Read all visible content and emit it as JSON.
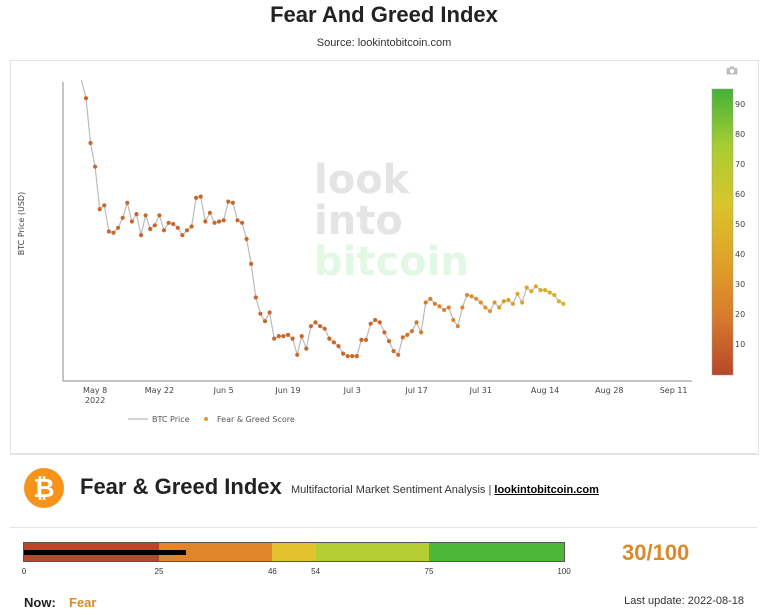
{
  "page": {
    "title": "Fear And Greed Index",
    "source": "Source: lookintobitcoin.com"
  },
  "chart_data": {
    "type": "line",
    "ylabel": "BTC Price (USD)",
    "xlabel": "",
    "x_axis_type": "date",
    "x_range": [
      "2022-05-01",
      "2022-09-15"
    ],
    "x_ticks": [
      {
        "date": "2022-05-08",
        "label": "May 8",
        "sublabel": "2022"
      },
      {
        "date": "2022-05-22",
        "label": "May 22"
      },
      {
        "date": "2022-06-05",
        "label": "Jun 5"
      },
      {
        "date": "2022-06-19",
        "label": "Jun 19"
      },
      {
        "date": "2022-07-03",
        "label": "Jul 3"
      },
      {
        "date": "2022-07-17",
        "label": "Jul 17"
      },
      {
        "date": "2022-07-31",
        "label": "Jul 31"
      },
      {
        "date": "2022-08-14",
        "label": "Aug 14"
      },
      {
        "date": "2022-08-28",
        "label": "Aug 28"
      },
      {
        "date": "2022-09-11",
        "label": "Sep 11"
      }
    ],
    "price_range": [
      17000,
      41000
    ],
    "legend_position": "bottom-left",
    "watermark": [
      "look",
      "into",
      "bitcoin"
    ],
    "series": [
      {
        "name": "BTC Price",
        "color": "#bbbbbb",
        "x": [
          "2022-05-06",
          "2022-05-07",
          "2022-05-08",
          "2022-05-09",
          "2022-05-10",
          "2022-05-11",
          "2022-05-12",
          "2022-05-13",
          "2022-05-14",
          "2022-05-15",
          "2022-05-16",
          "2022-05-17",
          "2022-05-18",
          "2022-05-19",
          "2022-05-20",
          "2022-05-21",
          "2022-05-22",
          "2022-05-23",
          "2022-05-24",
          "2022-05-25",
          "2022-05-26",
          "2022-05-27",
          "2022-05-28",
          "2022-05-29",
          "2022-05-30",
          "2022-05-31",
          "2022-06-01",
          "2022-06-02",
          "2022-06-03",
          "2022-06-04",
          "2022-06-05",
          "2022-06-06",
          "2022-06-07",
          "2022-06-08",
          "2022-06-09",
          "2022-06-10",
          "2022-06-11",
          "2022-06-12",
          "2022-06-13",
          "2022-06-14",
          "2022-06-15",
          "2022-06-16",
          "2022-06-17",
          "2022-06-18",
          "2022-06-19",
          "2022-06-20",
          "2022-06-21",
          "2022-06-22",
          "2022-06-23",
          "2022-06-24",
          "2022-06-25",
          "2022-06-26",
          "2022-06-27",
          "2022-06-28",
          "2022-06-29",
          "2022-06-30",
          "2022-07-01",
          "2022-07-02",
          "2022-07-03",
          "2022-07-04",
          "2022-07-05",
          "2022-07-06",
          "2022-07-07",
          "2022-07-08",
          "2022-07-09",
          "2022-07-10",
          "2022-07-11",
          "2022-07-12",
          "2022-07-13",
          "2022-07-14",
          "2022-07-15",
          "2022-07-16",
          "2022-07-17",
          "2022-07-18",
          "2022-07-19",
          "2022-07-20",
          "2022-07-21",
          "2022-07-22",
          "2022-07-23",
          "2022-07-24",
          "2022-07-25",
          "2022-07-26",
          "2022-07-27",
          "2022-07-28",
          "2022-07-29",
          "2022-07-30",
          "2022-07-31",
          "2022-08-01",
          "2022-08-02",
          "2022-08-03",
          "2022-08-04",
          "2022-08-05",
          "2022-08-06",
          "2022-08-07",
          "2022-08-08",
          "2022-08-09",
          "2022-08-10",
          "2022-08-11",
          "2022-08-12",
          "2022-08-13",
          "2022-08-14",
          "2022-08-15",
          "2022-08-16",
          "2022-08-17",
          "2022-08-18"
        ],
        "values": [
          39700,
          36100,
          34200,
          30800,
          31100,
          29000,
          28900,
          29300,
          30100,
          31300,
          29800,
          30400,
          28700,
          30300,
          29200,
          29500,
          30300,
          29100,
          29700,
          29600,
          29300,
          28700,
          29100,
          29400,
          31700,
          31800,
          29800,
          30500,
          29700,
          29800,
          29900,
          31400,
          31300,
          29900,
          29700,
          28400,
          26400,
          23700,
          22400,
          21800,
          22500,
          20400,
          20600,
          20600,
          20700,
          20400,
          19100,
          20600,
          19600,
          21400,
          21700,
          21400,
          21200,
          20400,
          20100,
          19800,
          19200,
          19000,
          19000,
          19000,
          20300,
          20300,
          21600,
          21900,
          21700,
          20900,
          20200,
          19400,
          19100,
          20500,
          20700,
          21000,
          21700,
          20900,
          23300,
          23600,
          23200,
          23000,
          22700,
          22900,
          21900,
          21400,
          22900,
          23900,
          23800,
          23600,
          23300,
          22900,
          22600,
          23300,
          22900,
          23400,
          23500,
          23200,
          24000,
          23300,
          24500,
          24200,
          24600,
          24300,
          24300,
          24100,
          23900,
          23400,
          23200
        ]
      },
      {
        "name": "Fear & Greed Score",
        "color": "#e0952d",
        "marker": "circle"
      }
    ],
    "colorbar": {
      "range": [
        0,
        100
      ],
      "ticks": [
        10,
        20,
        30,
        40,
        50,
        60,
        70,
        80,
        90
      ],
      "stops": [
        "#b8472a",
        "#d77a2c",
        "#e0a227",
        "#d8c52c",
        "#a7cd31",
        "#44b23a"
      ]
    }
  },
  "header": {
    "title": "Fear & Greed Index",
    "subtitle": "Multifactorial Market Sentiment Analysis |",
    "link": "lookintobitcoin.com"
  },
  "gauge": {
    "value": 30,
    "score_text": "30/100",
    "segments": [
      {
        "from": 0,
        "to": 25,
        "color": "#b8472a"
      },
      {
        "from": 25,
        "to": 46,
        "color": "#e0852a"
      },
      {
        "from": 46,
        "to": 54,
        "color": "#e1c22c"
      },
      {
        "from": 54,
        "to": 75,
        "color": "#b4cd30"
      },
      {
        "from": 75,
        "to": 100,
        "color": "#4cb83a"
      }
    ],
    "ticks": [
      "0",
      "25",
      "46",
      "54",
      "75",
      "100"
    ]
  },
  "status": {
    "now_label": "Now:",
    "now_value": "Fear",
    "last_update": "Last update: 2022-08-18"
  }
}
